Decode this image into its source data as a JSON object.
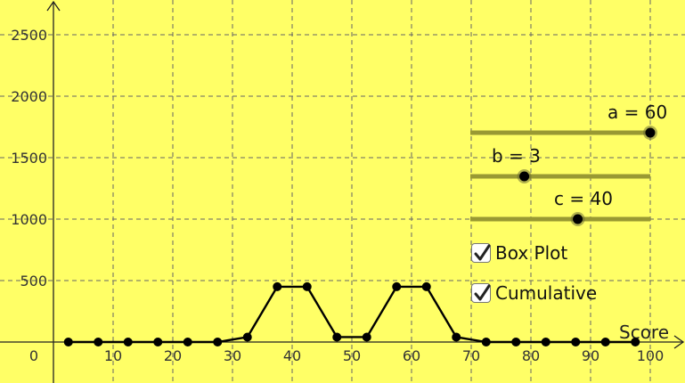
{
  "axes": {
    "x_label": "Score",
    "x_ticks": [
      "0",
      "10",
      "20",
      "30",
      "40",
      "50",
      "60",
      "70",
      "80",
      "90",
      "100"
    ],
    "y_ticks": [
      "500",
      "1000",
      "1500",
      "2000",
      "2500"
    ]
  },
  "sliders": [
    {
      "id": "a",
      "label": "a = 60",
      "value": 60,
      "min": 0,
      "max": 60
    },
    {
      "id": "b",
      "label": "b = 3",
      "value": 3,
      "min": 0,
      "max": 10
    },
    {
      "id": "c",
      "label": "c = 40",
      "value": 40,
      "min": 0,
      "max": 67
    }
  ],
  "checkboxes": [
    {
      "label": "Box Plot",
      "checked": true
    },
    {
      "label": "Cumulative",
      "checked": true
    }
  ],
  "colors": {
    "background": "#ffff66",
    "grid": "#666666",
    "slider_track": "#999933",
    "point": "#000000"
  },
  "chart_data": {
    "type": "line",
    "x": [
      2.5,
      7.5,
      12.5,
      17.5,
      22.5,
      27.5,
      32.5,
      37.5,
      42.5,
      47.5,
      52.5,
      57.5,
      62.5,
      67.5,
      72.5,
      77.5,
      82.5,
      87.5,
      92.5,
      97.5
    ],
    "y": [
      0,
      0,
      0,
      0,
      0,
      0,
      40,
      450,
      450,
      40,
      40,
      450,
      450,
      40,
      0,
      0,
      0,
      0,
      0,
      0
    ],
    "xlabel": "Score",
    "ylabel": "",
    "xlim": [
      -8.5,
      105
    ],
    "ylim": [
      -40,
      2750
    ],
    "grid": true
  }
}
